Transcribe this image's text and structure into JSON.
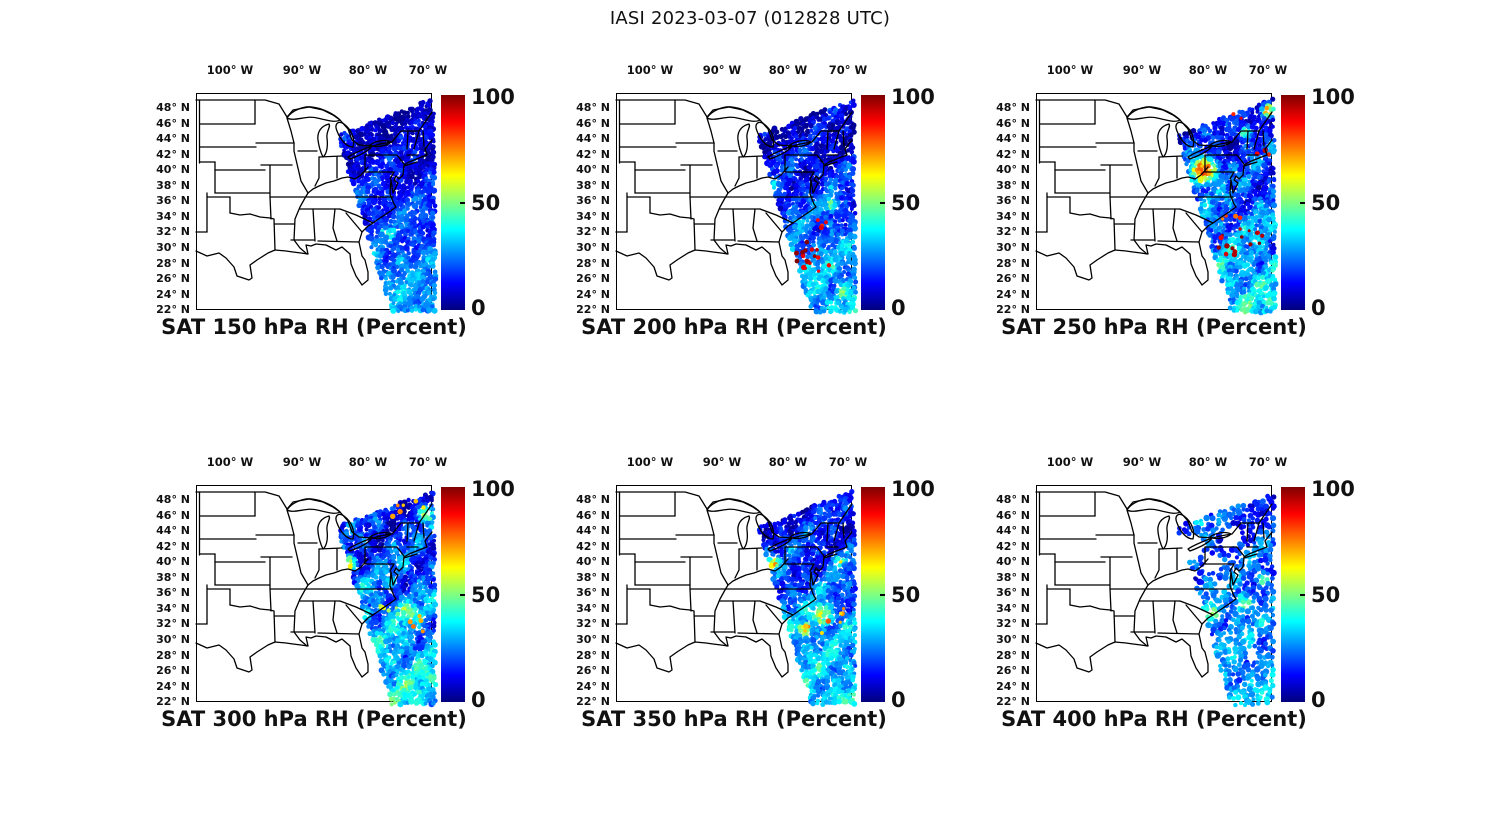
{
  "title": "IASI 2023-03-07 (012828 UTC)",
  "chart_data": {
    "type": "map-scatter",
    "figure_title": "IASI 2023-03-07 (012828 UTC)",
    "instrument": "IASI",
    "date": "2023-03-07",
    "time_utc": "012828",
    "variable": "RH",
    "units": "Percent",
    "grid": "2 rows x 3 columns",
    "colormap": "jet",
    "colormap_stops": [
      "#00007F",
      "#0000FF",
      "#00FFFF",
      "#FFFF00",
      "#FF0000",
      "#7F0000"
    ],
    "colormap_stop_pcts": [
      0,
      12.5,
      37.5,
      62.5,
      87.5,
      100
    ],
    "colorbar": {
      "min": 0,
      "max": 100,
      "ticks": [
        "0",
        "50",
        "100"
      ]
    },
    "lon_ticks": [
      "100° W",
      "90° W",
      "80° W",
      "70° W"
    ],
    "lat_ticks": [
      "48° N",
      "46° N",
      "44° N",
      "42° N",
      "40° N",
      "38° N",
      "36° N",
      "34° N",
      "32° N",
      "30° N",
      "28° N",
      "26° N",
      "24° N",
      "22° N"
    ],
    "map_extent": {
      "lon_w": [
        105,
        69
      ],
      "lat_n": [
        22,
        50
      ]
    },
    "swath_note": "Satellite overpass swath over the US east coast and western Atlantic, NE-SW oriented band; mostly low RH (blue) aloft with moist patches",
    "panels": [
      {
        "id": "sat-150-hpa",
        "title": "SAT 150 hPa RH (Percent)",
        "level_hPa": 150,
        "field": {
          "vTop": 7,
          "vBot": 30,
          "amp1": 6,
          "amp2": 10,
          "phase": 1.3,
          "seed": 11
        },
        "dot": {
          "r": 2.4,
          "step": 3.6
        },
        "hotspots": [
          [
            195,
            141,
            5,
            72
          ],
          [
            188,
            138,
            4,
            55
          ],
          [
            205,
            170,
            9,
            38
          ]
        ],
        "speckles": [],
        "holes": []
      },
      {
        "id": "sat-200-hpa",
        "title": "SAT 200 hPa RH (Percent)",
        "level_hPa": 200,
        "field": {
          "vTop": 8,
          "vBot": 34,
          "amp1": 8,
          "amp2": 12,
          "phase": 2.1,
          "seed": 23
        },
        "dot": {
          "r": 2.4,
          "step": 3.6
        },
        "hotspots": [
          [
            148,
            95,
            13,
            68
          ],
          [
            140,
            110,
            9,
            85
          ],
          [
            152,
            122,
            8,
            72
          ],
          [
            215,
            112,
            10,
            45
          ],
          [
            228,
            200,
            10,
            50
          ]
        ],
        "speckles": [
          [
            180,
            160,
            22,
            95,
            14
          ],
          [
            200,
            172,
            14,
            92,
            8
          ],
          [
            150,
            118,
            9,
            98,
            6
          ],
          [
            206,
            130,
            8,
            85,
            4
          ]
        ],
        "holes": []
      },
      {
        "id": "sat-250-hpa",
        "title": "SAT 250 hPa RH (Percent)",
        "level_hPa": 250,
        "field": {
          "vTop": 12,
          "vBot": 36,
          "amp1": 9,
          "amp2": 13,
          "phase": 0.4,
          "seed": 37
        },
        "dot": {
          "r": 2.4,
          "step": 3.6
        },
        "hotspots": [
          [
            168,
            78,
            15,
            80
          ],
          [
            150,
            90,
            8,
            65
          ],
          [
            210,
            40,
            8,
            50
          ],
          [
            232,
            18,
            7,
            75
          ]
        ],
        "speckles": [
          [
            205,
            150,
            25,
            95,
            16
          ],
          [
            195,
            14,
            28,
            85,
            10
          ],
          [
            226,
            60,
            8,
            90,
            3
          ],
          [
            196,
            125,
            10,
            80,
            4
          ]
        ],
        "holes": []
      },
      {
        "id": "sat-300-hpa",
        "title": "SAT 300 hPa RH (Percent)",
        "level_hPa": 300,
        "field": {
          "vTop": 14,
          "vBot": 38,
          "amp1": 10,
          "amp2": 12,
          "phase": 3.6,
          "seed": 51
        },
        "dot": {
          "r": 2.4,
          "step": 3.6
        },
        "hotspots": [
          [
            152,
            79,
            9,
            70
          ],
          [
            210,
            128,
            16,
            52
          ],
          [
            230,
            30,
            10,
            55
          ],
          [
            168,
            130,
            10,
            48
          ]
        ],
        "speckles": [
          [
            210,
            25,
            20,
            70,
            8
          ],
          [
            225,
            140,
            15,
            75,
            5
          ],
          [
            190,
            120,
            12,
            60,
            5
          ]
        ],
        "holes": []
      },
      {
        "id": "sat-350-hpa",
        "title": "SAT 350 hPa RH (Percent)",
        "level_hPa": 350,
        "field": {
          "vTop": 13,
          "vBot": 36,
          "amp1": 9,
          "amp2": 12,
          "phase": 4.9,
          "seed": 67
        },
        "dot": {
          "r": 2.4,
          "step": 3.6
        },
        "hotspots": [
          [
            158,
            78,
            8,
            68
          ],
          [
            224,
            76,
            8,
            58
          ],
          [
            205,
            130,
            16,
            55
          ],
          [
            188,
            145,
            10,
            58
          ]
        ],
        "speckles": [
          [
            225,
            130,
            12,
            70,
            4
          ],
          [
            160,
            18,
            15,
            60,
            5
          ],
          [
            200,
            140,
            15,
            72,
            5
          ]
        ],
        "holes": []
      },
      {
        "id": "sat-400-hpa",
        "title": "SAT 400 hPa RH (Percent)",
        "level_hPa": 400,
        "field": {
          "vTop": 18,
          "vBot": 30,
          "amp1": 8,
          "amp2": 10,
          "phase": 5.8,
          "seed": 83
        },
        "dot": {
          "r": 2.5,
          "step": 4.6
        },
        "hotspots": [
          [
            175,
            128,
            16,
            48
          ],
          [
            152,
            138,
            12,
            46
          ],
          [
            208,
            118,
            12,
            50
          ],
          [
            165,
            35,
            10,
            40
          ],
          [
            228,
            95,
            10,
            42
          ]
        ],
        "speckles": [],
        "holes": [
          [
            155,
            62,
            13
          ],
          [
            176,
            78,
            10
          ],
          [
            195,
            52,
            11
          ],
          [
            150,
            92,
            8
          ],
          [
            186,
            100,
            7
          ],
          [
            215,
            170,
            6
          ],
          [
            170,
            190,
            7
          ]
        ]
      }
    ]
  }
}
